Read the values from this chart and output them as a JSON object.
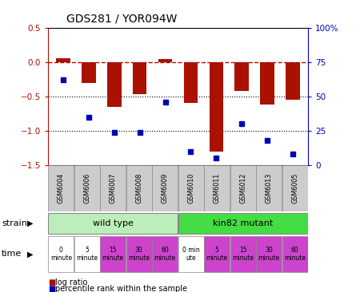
{
  "title": "GDS281 / YOR094W",
  "samples": [
    "GSM6004",
    "GSM6006",
    "GSM6007",
    "GSM6008",
    "GSM6009",
    "GSM6010",
    "GSM6011",
    "GSM6012",
    "GSM6013",
    "GSM6005"
  ],
  "log_ratio": [
    0.05,
    -0.3,
    -0.65,
    -0.47,
    0.04,
    -0.6,
    -1.3,
    -0.42,
    -0.62,
    -0.55
  ],
  "percentile": [
    62,
    35,
    24,
    24,
    46,
    10,
    5,
    30,
    18,
    8
  ],
  "ylim": [
    -1.5,
    0.5
  ],
  "right_ylim": [
    0,
    100
  ],
  "bar_color": "#aa1100",
  "dot_color": "#0000bb",
  "strain_wild_label": "wild type",
  "strain_wild_color": "#bbeebb",
  "strain_mutant_label": "kin82 mutant",
  "strain_mutant_color": "#44dd44",
  "time_labels": [
    "0\nminute",
    "5\nminute",
    "15\nminute",
    "30\nminute",
    "60\nminute",
    "0 min\nute",
    "5\nminute",
    "15\nminute",
    "30\nminute",
    "60\nminute"
  ],
  "time_colors": [
    "white",
    "white",
    "#cc44cc",
    "#cc44cc",
    "#cc44cc",
    "white",
    "#cc44cc",
    "#cc44cc",
    "#cc44cc",
    "#cc44cc"
  ],
  "sample_bg": "#cccccc",
  "dashed_line_color": "#aa1100"
}
